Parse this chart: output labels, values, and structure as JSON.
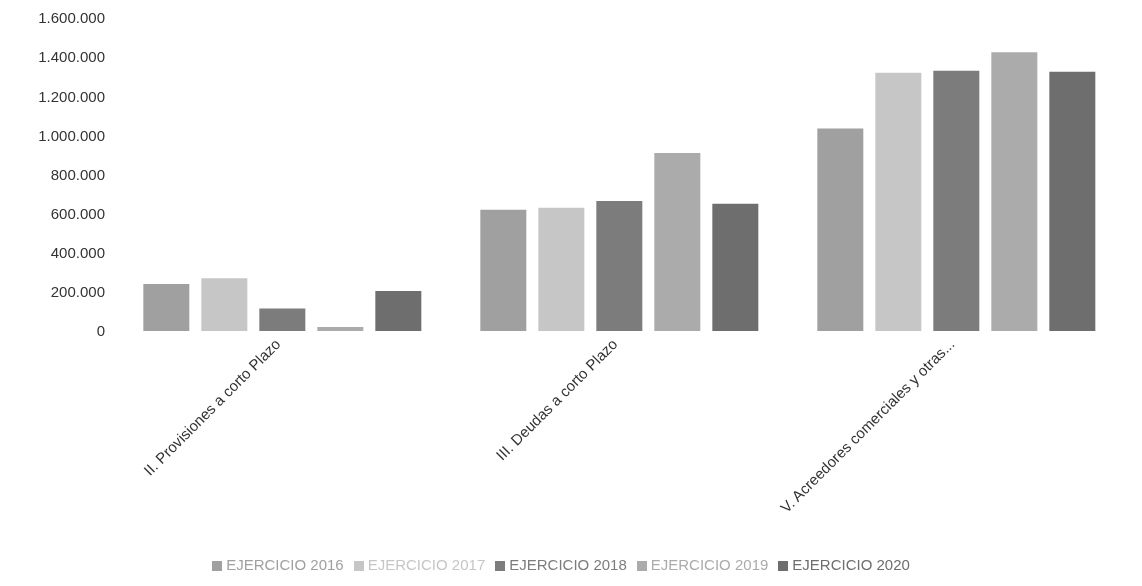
{
  "chart_data": {
    "type": "bar",
    "categories": [
      "II. Provisiones a corto Plazo",
      "III. Deudas a corto Plazo",
      "V. Acreedores comerciales y otras..."
    ],
    "series": [
      {
        "name": "EJERCICIO 2016",
        "color": "#a0a0a0",
        "values": [
          240000,
          620000,
          1035000
        ]
      },
      {
        "name": "EJERCICIO 2017",
        "color": "#c6c6c6",
        "values": [
          270000,
          630000,
          1320000
        ]
      },
      {
        "name": "EJERCICIO 2018",
        "color": "#7c7c7c",
        "values": [
          115000,
          665000,
          1330000
        ]
      },
      {
        "name": "EJERCICIO 2019",
        "color": "#ababab",
        "values": [
          20000,
          910000,
          1425000
        ]
      },
      {
        "name": "EJERCICIO 2020",
        "color": "#6e6e6e",
        "values": [
          205000,
          650000,
          1325000
        ]
      }
    ],
    "ylim": [
      0,
      1600000
    ],
    "yticks": [
      {
        "value": 0,
        "label": "0"
      },
      {
        "value": 200000,
        "label": "200.000"
      },
      {
        "value": 400000,
        "label": "400.000"
      },
      {
        "value": 600000,
        "label": "600.000"
      },
      {
        "value": 800000,
        "label": "800.000"
      },
      {
        "value": 1000000,
        "label": "1.000.000"
      },
      {
        "value": 1200000,
        "label": "1.200.000"
      },
      {
        "value": 1400000,
        "label": "1.400.000"
      },
      {
        "value": 1600000,
        "label": "1.600.000"
      }
    ],
    "grid": false,
    "legend": "bottom"
  }
}
